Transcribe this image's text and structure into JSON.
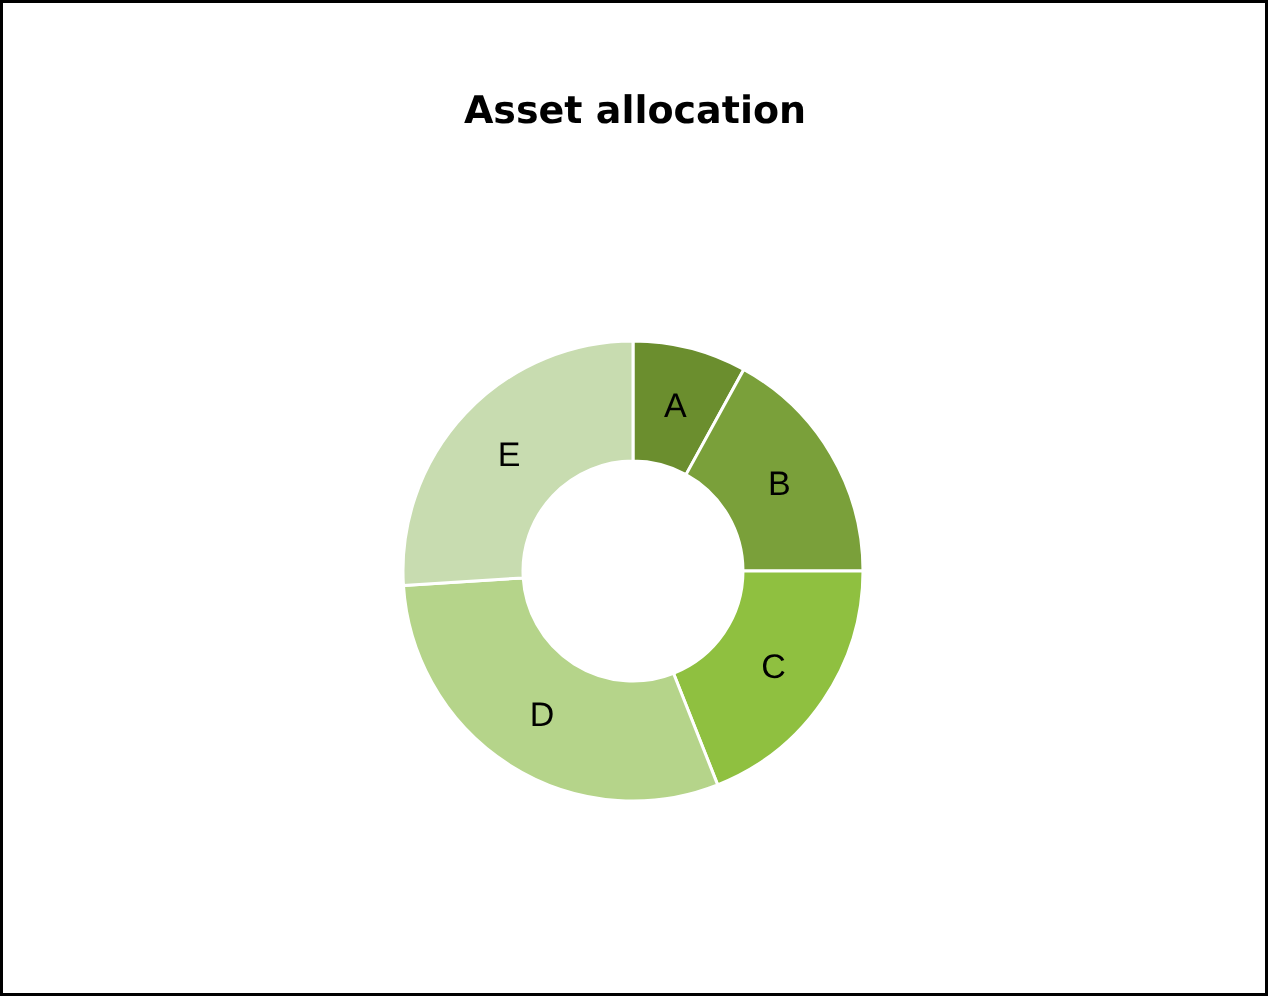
{
  "chart_data": {
    "type": "donut",
    "title": "Asset allocation",
    "categories": [
      "A",
      "B",
      "C",
      "D",
      "E"
    ],
    "values": [
      8,
      17,
      19,
      30,
      26
    ],
    "colors": [
      "#6b8e2e",
      "#7aa03a",
      "#8fc040",
      "#b5d48a",
      "#c8dcb0"
    ]
  }
}
